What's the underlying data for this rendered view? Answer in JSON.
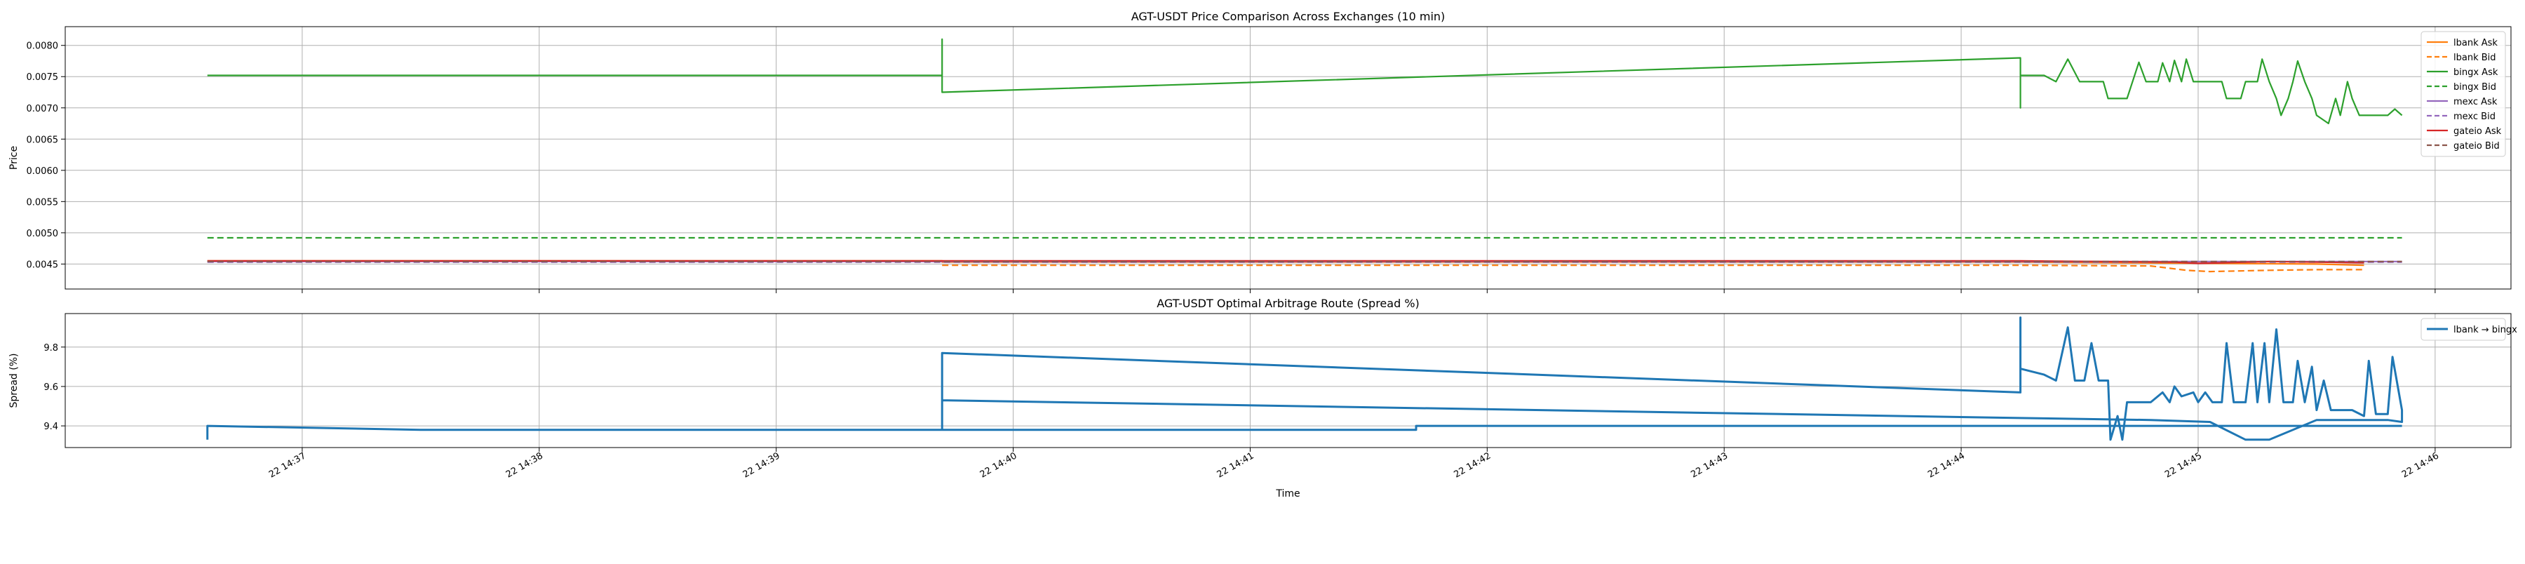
{
  "chart_data": [
    {
      "type": "line",
      "title": "AGT-USDT Price Comparison Across Exchanges (10 min)",
      "xlabel": "",
      "ylabel": "Price",
      "ylim": [
        0.0041,
        0.0083
      ],
      "y_ticks": [
        "0.0045",
        "0.0050",
        "0.0055",
        "0.0060",
        "0.0065",
        "0.0070",
        "0.0075",
        "0.0080"
      ],
      "grid": true,
      "legend_position": "top-right",
      "series": [
        {
          "name": "lbank Ask",
          "color": "#ff7f0e",
          "dash": "solid",
          "points": [
            [
              36.6,
              0.00455
            ],
            [
              39.7,
              0.00455
            ],
            [
              39.7,
              0.00453
            ],
            [
              44.25,
              0.00453
            ],
            [
              44.7,
              0.00452
            ],
            [
              45.1,
              0.00451
            ],
            [
              45.5,
              0.0045
            ],
            [
              45.7,
              0.00448
            ]
          ]
        },
        {
          "name": "lbank Bid",
          "color": "#ff7f0e",
          "dash": "dashed",
          "points": [
            [
              39.7,
              0.00448
            ],
            [
              44.25,
              0.00448
            ],
            [
              44.8,
              0.00447
            ],
            [
              44.95,
              0.0044
            ],
            [
              45.05,
              0.00438
            ],
            [
              45.3,
              0.0044
            ],
            [
              45.5,
              0.00441
            ],
            [
              45.7,
              0.00441
            ]
          ]
        },
        {
          "name": "bingx Ask",
          "color": "#2ca02c",
          "dash": "solid",
          "points": [
            [
              36.6,
              0.00752
            ],
            [
              39.7,
              0.00752
            ],
            [
              39.7,
              0.0081
            ],
            [
              39.7,
              0.00725
            ],
            [
              44.25,
              0.0078
            ],
            [
              44.25,
              0.007
            ],
            [
              44.25,
              0.00752
            ],
            [
              44.35,
              0.00752
            ],
            [
              44.4,
              0.00742
            ],
            [
              44.45,
              0.00778
            ],
            [
              44.5,
              0.00742
            ],
            [
              44.6,
              0.00742
            ],
            [
              44.62,
              0.00715
            ],
            [
              44.7,
              0.00715
            ],
            [
              44.75,
              0.00773
            ],
            [
              44.78,
              0.00742
            ],
            [
              44.83,
              0.00742
            ],
            [
              44.85,
              0.00772
            ],
            [
              44.88,
              0.00742
            ],
            [
              44.9,
              0.00776
            ],
            [
              44.93,
              0.00742
            ],
            [
              44.95,
              0.00778
            ],
            [
              44.98,
              0.00742
            ],
            [
              45.1,
              0.00742
            ],
            [
              45.12,
              0.00715
            ],
            [
              45.18,
              0.00715
            ],
            [
              45.2,
              0.00742
            ],
            [
              45.25,
              0.00742
            ],
            [
              45.27,
              0.00778
            ],
            [
              45.3,
              0.00742
            ],
            [
              45.33,
              0.00715
            ],
            [
              45.35,
              0.00688
            ],
            [
              45.38,
              0.00715
            ],
            [
              45.4,
              0.00742
            ],
            [
              45.42,
              0.00775
            ],
            [
              45.45,
              0.00742
            ],
            [
              45.48,
              0.00715
            ],
            [
              45.5,
              0.00688
            ],
            [
              45.55,
              0.00675
            ],
            [
              45.58,
              0.00715
            ],
            [
              45.6,
              0.00688
            ],
            [
              45.63,
              0.00742
            ],
            [
              45.65,
              0.00715
            ],
            [
              45.68,
              0.00688
            ],
            [
              45.8,
              0.00688
            ],
            [
              45.83,
              0.00698
            ],
            [
              45.86,
              0.00688
            ]
          ]
        },
        {
          "name": "bingx Bid",
          "color": "#2ca02c",
          "dash": "dashed",
          "points": [
            [
              36.6,
              0.00492
            ],
            [
              45.86,
              0.00492
            ]
          ]
        },
        {
          "name": "mexc Ask",
          "color": "#9467bd",
          "dash": "solid",
          "points": [
            [
              36.6,
              0.00454
            ],
            [
              45.86,
              0.00454
            ]
          ]
        },
        {
          "name": "mexc Bid",
          "color": "#9467bd",
          "dash": "dashed",
          "points": [
            [
              36.6,
              0.00453
            ],
            [
              45.86,
              0.00453
            ]
          ]
        },
        {
          "name": "gateio Ask",
          "color": "#d62728",
          "dash": "solid",
          "points": [
            [
              36.6,
              0.00455
            ],
            [
              44.25,
              0.00455
            ],
            [
              44.9,
              0.00453
            ],
            [
              45.0,
              0.00451
            ],
            [
              45.1,
              0.00452
            ],
            [
              45.3,
              0.00454
            ],
            [
              45.5,
              0.00453
            ],
            [
              45.7,
              0.00452
            ]
          ]
        },
        {
          "name": "gateio Bid",
          "color": "#8c564b",
          "dash": "dashed",
          "points": [
            [
              36.6,
              0.00454
            ],
            [
              45.86,
              0.00454
            ]
          ]
        }
      ]
    },
    {
      "type": "line",
      "title": "AGT-USDT Optimal Arbitrage Route (Spread %)",
      "xlabel": "Time",
      "ylabel": "Spread (%)",
      "ylim": [
        9.29,
        9.97
      ],
      "y_ticks": [
        "9.4",
        "9.6",
        "9.8"
      ],
      "x_ticks": [
        "22 14:37",
        "22 14:38",
        "22 14:39",
        "22 14:40",
        "22 14:41",
        "22 14:42",
        "22 14:43",
        "22 14:44",
        "22 14:45",
        "22 14:46"
      ],
      "xlim_minutes": [
        36.0,
        46.32
      ],
      "grid": true,
      "legend_position": "top-right",
      "series": [
        {
          "name": "lbank → bingx",
          "color": "#1f77b4",
          "dash": "solid",
          "points": [
            [
              36.6,
              9.33
            ],
            [
              36.6,
              9.4
            ],
            [
              37.5,
              9.38
            ],
            [
              39.7,
              9.38
            ],
            [
              39.7,
              9.77
            ],
            [
              44.25,
              9.57
            ],
            [
              44.25,
              9.95
            ],
            [
              44.25,
              9.69
            ],
            [
              44.35,
              9.66
            ],
            [
              44.4,
              9.63
            ],
            [
              44.45,
              9.9
            ],
            [
              44.48,
              9.63
            ],
            [
              44.52,
              9.63
            ],
            [
              44.55,
              9.82
            ],
            [
              44.58,
              9.63
            ],
            [
              44.62,
              9.63
            ],
            [
              44.63,
              9.33
            ],
            [
              44.66,
              9.45
            ],
            [
              44.68,
              9.33
            ],
            [
              44.7,
              9.52
            ],
            [
              44.8,
              9.52
            ],
            [
              44.85,
              9.57
            ],
            [
              44.88,
              9.52
            ],
            [
              44.9,
              9.6
            ],
            [
              44.93,
              9.55
            ],
            [
              44.98,
              9.57
            ],
            [
              45.0,
              9.52
            ],
            [
              45.03,
              9.57
            ],
            [
              45.06,
              9.52
            ],
            [
              45.1,
              9.52
            ],
            [
              45.12,
              9.82
            ],
            [
              45.15,
              9.52
            ],
            [
              45.2,
              9.52
            ],
            [
              45.23,
              9.82
            ],
            [
              45.25,
              9.52
            ],
            [
              45.28,
              9.82
            ],
            [
              45.3,
              9.52
            ],
            [
              45.33,
              9.89
            ],
            [
              45.36,
              9.52
            ],
            [
              45.4,
              9.52
            ],
            [
              45.42,
              9.73
            ],
            [
              45.45,
              9.52
            ],
            [
              45.48,
              9.7
            ],
            [
              45.5,
              9.48
            ],
            [
              45.53,
              9.63
            ],
            [
              45.56,
              9.48
            ],
            [
              45.6,
              9.48
            ],
            [
              45.65,
              9.48
            ],
            [
              45.7,
              9.45
            ],
            [
              45.72,
              9.73
            ],
            [
              45.75,
              9.46
            ],
            [
              45.8,
              9.46
            ],
            [
              45.82,
              9.75
            ],
            [
              45.86,
              9.48
            ],
            [
              45.86,
              9.42
            ],
            [
              45.8,
              9.43
            ],
            [
              45.5,
              9.43
            ],
            [
              45.3,
              9.33
            ],
            [
              45.2,
              9.33
            ],
            [
              45.05,
              9.42
            ],
            [
              44.8,
              9.43
            ],
            [
              44.25,
              9.44
            ],
            [
              39.7,
              9.53
            ],
            [
              39.7,
              9.38
            ],
            [
              41.7,
              9.38
            ],
            [
              41.7,
              9.4
            ],
            [
              45.86,
              9.4
            ]
          ]
        }
      ]
    }
  ]
}
